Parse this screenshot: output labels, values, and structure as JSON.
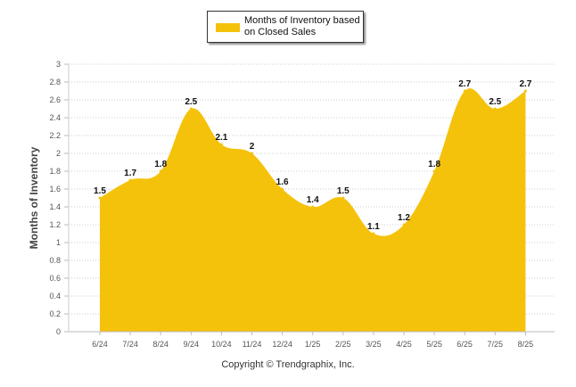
{
  "chart_data": {
    "type": "area",
    "categories": [
      "6/24",
      "7/24",
      "8/24",
      "9/24",
      "10/24",
      "11/24",
      "12/24",
      "1/25",
      "2/25",
      "3/25",
      "4/25",
      "5/25",
      "6/25",
      "7/25",
      "8/25"
    ],
    "series": [
      {
        "name": "Months of Inventory based on Closed Sales",
        "values": [
          1.5,
          1.7,
          1.8,
          2.5,
          2.1,
          2,
          1.6,
          1.4,
          1.5,
          1.1,
          1.2,
          1.8,
          2.7,
          2.5,
          2.7
        ],
        "color": "#f5c20b"
      }
    ],
    "data_labels": [
      "1.5",
      "1.7",
      "1.8",
      "2.5",
      "2.1",
      "2",
      "1.6",
      "1.4",
      "1.5",
      "1.1",
      "1.2",
      "1.8",
      "2.7",
      "2.5",
      "2.7"
    ],
    "ylabel": "Months of Inventory",
    "ylim": [
      0,
      3
    ],
    "yticks": [
      "0",
      "0.2",
      "0.4",
      "0.6",
      "0.8",
      "1",
      "1.2",
      "1.4",
      "1.6",
      "1.8",
      "2",
      "2.2",
      "2.4",
      "2.6",
      "2.8",
      "3"
    ],
    "grid": "horizontal dotted",
    "legend_position": "top-center"
  },
  "legend": {
    "label": "Months of Inventory based on Closed Sales"
  },
  "footer": {
    "copyright": "Copyright © Trendgraphix, Inc."
  },
  "colors": {
    "area": "#f5c20b",
    "grid": "#cccccc",
    "axis_text": "#555555"
  }
}
